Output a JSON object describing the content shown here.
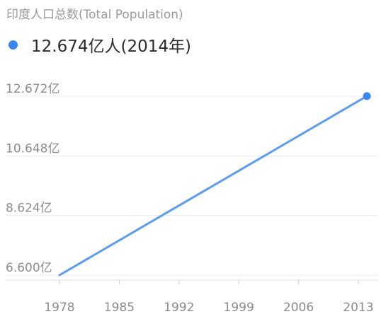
{
  "chart_data": {
    "type": "line",
    "title": "印度人口总数(Total Population)",
    "legend": {
      "label": "12.674亿人(2014年)",
      "position": "top-left"
    },
    "series": [
      {
        "name": "12.674亿人(2014年)",
        "color": "#5b9cf0",
        "x": [
          1978,
          2014
        ],
        "values": [
          6.6,
          12.674
        ]
      }
    ],
    "marker_color": "#3a86ef",
    "xlabel": "",
    "ylabel": "",
    "xlim": [
      1978,
      2014
    ],
    "ylim": [
      6.6,
      12.672
    ],
    "x_ticks": [
      1978,
      1985,
      1992,
      1999,
      2006,
      2013
    ],
    "y_ticks": [
      {
        "value": 6.6,
        "label": "6.600亿"
      },
      {
        "value": 8.624,
        "label": "8.624亿"
      },
      {
        "value": 10.648,
        "label": "10.648亿"
      },
      {
        "value": 12.672,
        "label": "12.672亿"
      }
    ],
    "grid": true
  }
}
